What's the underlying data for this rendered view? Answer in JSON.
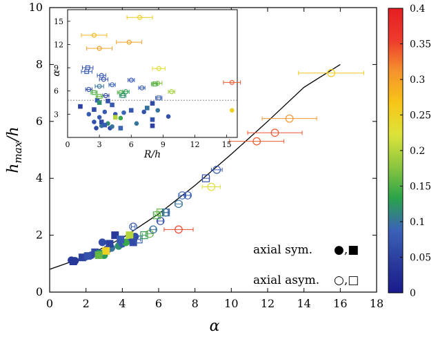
{
  "chart_data": [
    {
      "type": "scatter",
      "panel": "main",
      "xlabel": "α",
      "ylabel": "h_max/h",
      "xlim": [
        0,
        18
      ],
      "ylim": [
        0,
        10
      ],
      "xticks": [
        "0",
        "2",
        "4",
        "6",
        "8",
        "10",
        "12",
        "14",
        "16",
        "18"
      ],
      "yticks": [
        "0",
        "2",
        "4",
        "6",
        "8",
        "10"
      ],
      "fit_curve": [
        [
          0,
          0.8
        ],
        [
          2,
          1.25
        ],
        [
          4,
          1.9
        ],
        [
          6,
          2.75
        ],
        [
          8,
          3.75
        ],
        [
          10,
          4.85
        ],
        [
          12,
          6.0
        ],
        [
          14,
          7.2
        ],
        [
          16,
          8.0
        ]
      ],
      "legend": [
        {
          "label": "axial sym.",
          "markers": "●,■"
        },
        {
          "label": "axial asym.",
          "markers": "○,□"
        }
      ],
      "series": [
        {
          "name": "axial sym.",
          "marker": "filled-circle",
          "points": [
            [
              1.2,
              1.12,
              0.04
            ],
            [
              1.4,
              1.1,
              0.04
            ],
            [
              2.0,
              1.25,
              0.06
            ],
            [
              2.3,
              1.3,
              0.06
            ],
            [
              2.6,
              1.35,
              0.07
            ],
            [
              2.9,
              1.75,
              0.06
            ],
            [
              3.2,
              1.5,
              0.08
            ],
            [
              3.4,
              1.55,
              0.1
            ],
            [
              3.8,
              1.62,
              0.12
            ],
            [
              4.0,
              1.7,
              0.08
            ],
            [
              4.2,
              1.75,
              0.14
            ],
            [
              4.5,
              1.9,
              0.07
            ],
            [
              4.7,
              1.95,
              0.06
            ],
            [
              3.0,
              1.3,
              0.13
            ]
          ]
        },
        {
          "name": "axial sym.",
          "marker": "filled-square",
          "points": [
            [
              1.3,
              1.08,
              0.04
            ],
            [
              1.8,
              1.22,
              0.05
            ],
            [
              2.1,
              1.27,
              0.07
            ],
            [
              2.5,
              1.4,
              0.06
            ],
            [
              2.8,
              1.35,
              0.12
            ],
            [
              3.3,
              1.7,
              0.05
            ],
            [
              3.6,
              2.0,
              0.04
            ],
            [
              3.9,
              1.85,
              0.08
            ],
            [
              4.4,
              2.0,
              0.2
            ],
            [
              4.6,
              1.75,
              0.06
            ],
            [
              3.1,
              1.45,
              0.25
            ],
            [
              2.7,
              1.3,
              0.16
            ]
          ]
        },
        {
          "name": "axial asym.",
          "marker": "open-circle",
          "points": [
            [
              4.6,
              2.3,
              0.08,
              0.1
            ],
            [
              5.5,
              2.05,
              0.16,
              0.2
            ],
            [
              5.7,
              2.2,
              0.1,
              0.15
            ],
            [
              6.1,
              2.5,
              0.07,
              0.15
            ],
            [
              6.4,
              2.8,
              0.08,
              0.15
            ],
            [
              7.1,
              3.1,
              0.1,
              0.2
            ],
            [
              7.3,
              3.4,
              0.09,
              0.2
            ],
            [
              7.6,
              3.4,
              0.08,
              0.15
            ],
            [
              8.9,
              3.7,
              0.23,
              0.5
            ],
            [
              9.2,
              4.3,
              0.08,
              0.3
            ],
            [
              7.1,
              2.2,
              0.35,
              0.8
            ],
            [
              11.4,
              5.3,
              0.34,
              1.5
            ],
            [
              12.4,
              5.6,
              0.34,
              1.5
            ],
            [
              13.2,
              6.1,
              0.31,
              1.5
            ],
            [
              15.5,
              7.7,
              0.26,
              1.8
            ]
          ]
        },
        {
          "name": "axial asym.",
          "marker": "open-square",
          "points": [
            [
              4.9,
              1.85,
              0.08,
              0.1
            ],
            [
              5.2,
              2.0,
              0.13,
              0.1
            ],
            [
              5.9,
              2.7,
              0.15,
              0.1
            ],
            [
              6.1,
              2.8,
              0.16,
              0.1
            ],
            [
              6.4,
              2.8,
              0.1,
              0.1
            ],
            [
              8.6,
              4.0,
              0.07,
              0.2
            ]
          ]
        }
      ]
    },
    {
      "type": "scatter",
      "panel": "inset",
      "xlabel": "R/h",
      "ylabel": "α",
      "xlim": [
        0,
        16
      ],
      "ylim": [
        0,
        16.5
      ],
      "xticks": [
        "0",
        "3",
        "6",
        "9",
        "12",
        "15"
      ],
      "yticks": [
        "3",
        "6",
        "9",
        "12",
        "15"
      ],
      "hline": 4.8,
      "series": [
        {
          "name": "axial sym.",
          "marker": "filled-circle",
          "points": [
            [
              2.0,
              3.0,
              0.08
            ],
            [
              2.5,
              2.0,
              0.07
            ],
            [
              2.7,
              1.2,
              0.06
            ],
            [
              3.0,
              2.6,
              0.08
            ],
            [
              3.2,
              1.5,
              0.1
            ],
            [
              3.5,
              3.3,
              0.08
            ],
            [
              3.8,
              1.8,
              0.12
            ],
            [
              4.0,
              1.2,
              0.06
            ],
            [
              4.2,
              1.4,
              0.1
            ],
            [
              4.5,
              3.0,
              0.07
            ],
            [
              5.0,
              2.5,
              0.14
            ],
            [
              5.3,
              3.2,
              0.09
            ],
            [
              6.5,
              1.8,
              0.1
            ],
            [
              7.2,
              3.3,
              0.07
            ],
            [
              8.5,
              3.5,
              0.1
            ],
            [
              9.5,
              2.7,
              0.07
            ],
            [
              15.5,
              3.5,
              0.25
            ]
          ]
        },
        {
          "name": "axial sym.",
          "marker": "filled-square",
          "points": [
            [
              1.2,
              4.0,
              0.05
            ],
            [
              2.5,
              3.6,
              0.06
            ],
            [
              2.8,
              4.8,
              0.08
            ],
            [
              3.0,
              4.5,
              0.12
            ],
            [
              3.2,
              2.0,
              0.06
            ],
            [
              3.5,
              1.6,
              0.08
            ],
            [
              3.8,
              4.7,
              0.07
            ],
            [
              4.2,
              4.2,
              0.08
            ],
            [
              4.5,
              2.6,
              0.2
            ],
            [
              6.0,
              3.5,
              0.08
            ],
            [
              7.5,
              3.8,
              0.1
            ],
            [
              8.0,
              1.5,
              0.05
            ],
            [
              8.0,
              2.3,
              0.07
            ],
            [
              8.0,
              4.4,
              0.06
            ],
            [
              5.0,
              1.2,
              0.09
            ]
          ]
        },
        {
          "name": "axial asym.",
          "marker": "open-circle",
          "points": [
            [
              2.0,
              6.2,
              0.06,
              0.3
            ],
            [
              3.0,
              6.6,
              0.1,
              0.4
            ],
            [
              3.2,
              8.0,
              0.08,
              0.4
            ],
            [
              3.4,
              7.5,
              0.07,
              0.4
            ],
            [
              3.6,
              5.4,
              0.05,
              0.3
            ],
            [
              4.2,
              6.8,
              0.09,
              0.3
            ],
            [
              5.0,
              5.8,
              0.15,
              0.3
            ],
            [
              5.5,
              5.9,
              0.13,
              0.3
            ],
            [
              6.0,
              7.4,
              0.08,
              0.3
            ],
            [
              7.0,
              6.4,
              0.08,
              0.3
            ],
            [
              8.5,
              7.0,
              0.17,
              0.4
            ],
            [
              9.8,
              5.9,
              0.19,
              0.3
            ],
            [
              3.0,
              11.5,
              0.3,
              1.2
            ],
            [
              2.5,
              13.2,
              0.28,
              1.2
            ],
            [
              5.8,
              12.3,
              0.3,
              1.2
            ],
            [
              6.8,
              15.5,
              0.26,
              1.2
            ],
            [
              15.5,
              7.1,
              0.34,
              0.8
            ],
            [
              8.6,
              8.9,
              0.23,
              0.6
            ]
          ]
        },
        {
          "name": "axial asym.",
          "marker": "open-square",
          "points": [
            [
              1.8,
              8.5,
              0.08,
              0.5
            ],
            [
              1.9,
              9.0,
              0.07,
              0.5
            ],
            [
              2.5,
              5.8,
              0.15,
              0.3
            ],
            [
              3.0,
              5.3,
              0.16,
              0.3
            ],
            [
              5.2,
              5.4,
              0.12,
              0.3
            ],
            [
              8.2,
              6.9,
              0.15,
              0.3
            ],
            [
              8.6,
              5.1,
              0.08,
              0.3
            ]
          ]
        }
      ]
    },
    {
      "type": "colorbar",
      "range": [
        0,
        0.4
      ],
      "ticks": [
        "0",
        "0.05",
        "0.1",
        "0.15",
        "0.2",
        "0.25",
        "0.3",
        "0.35",
        "0.4"
      ],
      "colors": [
        "#1a1a8c",
        "#2a3c9c",
        "#3b63b8",
        "#2aa34a",
        "#8cc63f",
        "#dde33a",
        "#f7c617",
        "#f5932d",
        "#ee3a2d",
        "#e51f23"
      ]
    }
  ]
}
